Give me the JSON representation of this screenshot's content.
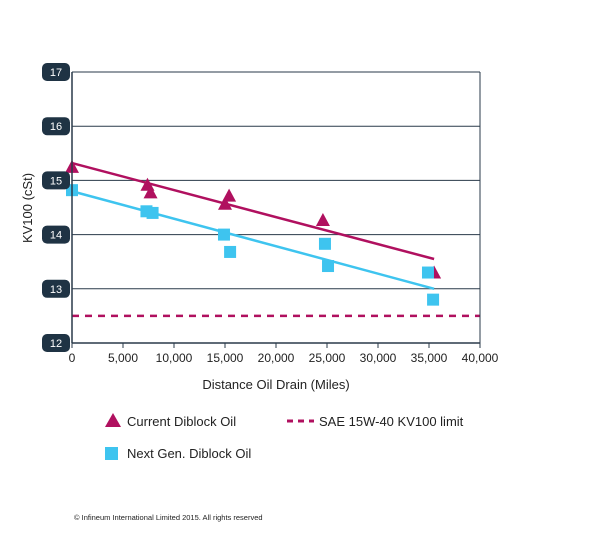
{
  "chart_data": {
    "type": "scatter",
    "xlabel": "Distance Oil Drain (Miles)",
    "ylabel": "KV100 (cSt)",
    "xlim": [
      0,
      40000
    ],
    "ylim": [
      12,
      17
    ],
    "x_ticks": [
      "0",
      "5,000",
      "10,000",
      "15,000",
      "20,000",
      "25,000",
      "30,000",
      "35,000",
      "40,000"
    ],
    "y_ticks": [
      "12",
      "13",
      "14",
      "15",
      "16",
      "17"
    ],
    "x_tick_values": [
      0,
      5000,
      10000,
      15000,
      20000,
      25000,
      30000,
      35000,
      40000
    ],
    "y_tick_values": [
      12,
      13,
      14,
      15,
      16,
      17
    ],
    "grid": "horizontal",
    "series": [
      {
        "name": "Current Diblock Oil",
        "marker": "triangle",
        "color": "#b0105f",
        "points": [
          [
            0,
            15.25
          ],
          [
            7400,
            14.92
          ],
          [
            7700,
            14.78
          ],
          [
            15000,
            14.57
          ],
          [
            15400,
            14.72
          ],
          [
            24600,
            14.27
          ],
          [
            35500,
            13.3
          ]
        ],
        "trendline": [
          [
            0,
            15.32
          ],
          [
            35500,
            13.55
          ]
        ]
      },
      {
        "name": "Next Gen. Diblock Oil",
        "marker": "square",
        "color": "#3ec4ef",
        "points": [
          [
            0,
            14.82
          ],
          [
            7300,
            14.43
          ],
          [
            7900,
            14.4
          ],
          [
            14900,
            14.0
          ],
          [
            15500,
            13.68
          ],
          [
            24800,
            13.83
          ],
          [
            25100,
            13.42
          ],
          [
            34900,
            13.3
          ],
          [
            35400,
            12.8
          ]
        ],
        "trendline": [
          [
            0,
            14.8
          ],
          [
            35500,
            13.0
          ]
        ]
      }
    ],
    "reference_lines": [
      {
        "name": "SAE 15W-40 KV100 limit",
        "y": 12.5,
        "style": "dashed",
        "color": "#b0105f"
      }
    ],
    "legend": {
      "placement": "bottom",
      "items": [
        {
          "label": "Current Diblock Oil",
          "marker": "triangle"
        },
        {
          "label": "SAE 15W-40 KV100 limit",
          "marker": "dashed-line"
        },
        {
          "label": "Next Gen. Diblock Oil",
          "marker": "square"
        }
      ]
    }
  },
  "footer": "© Infineum International Limited 2015. All rights reserved"
}
